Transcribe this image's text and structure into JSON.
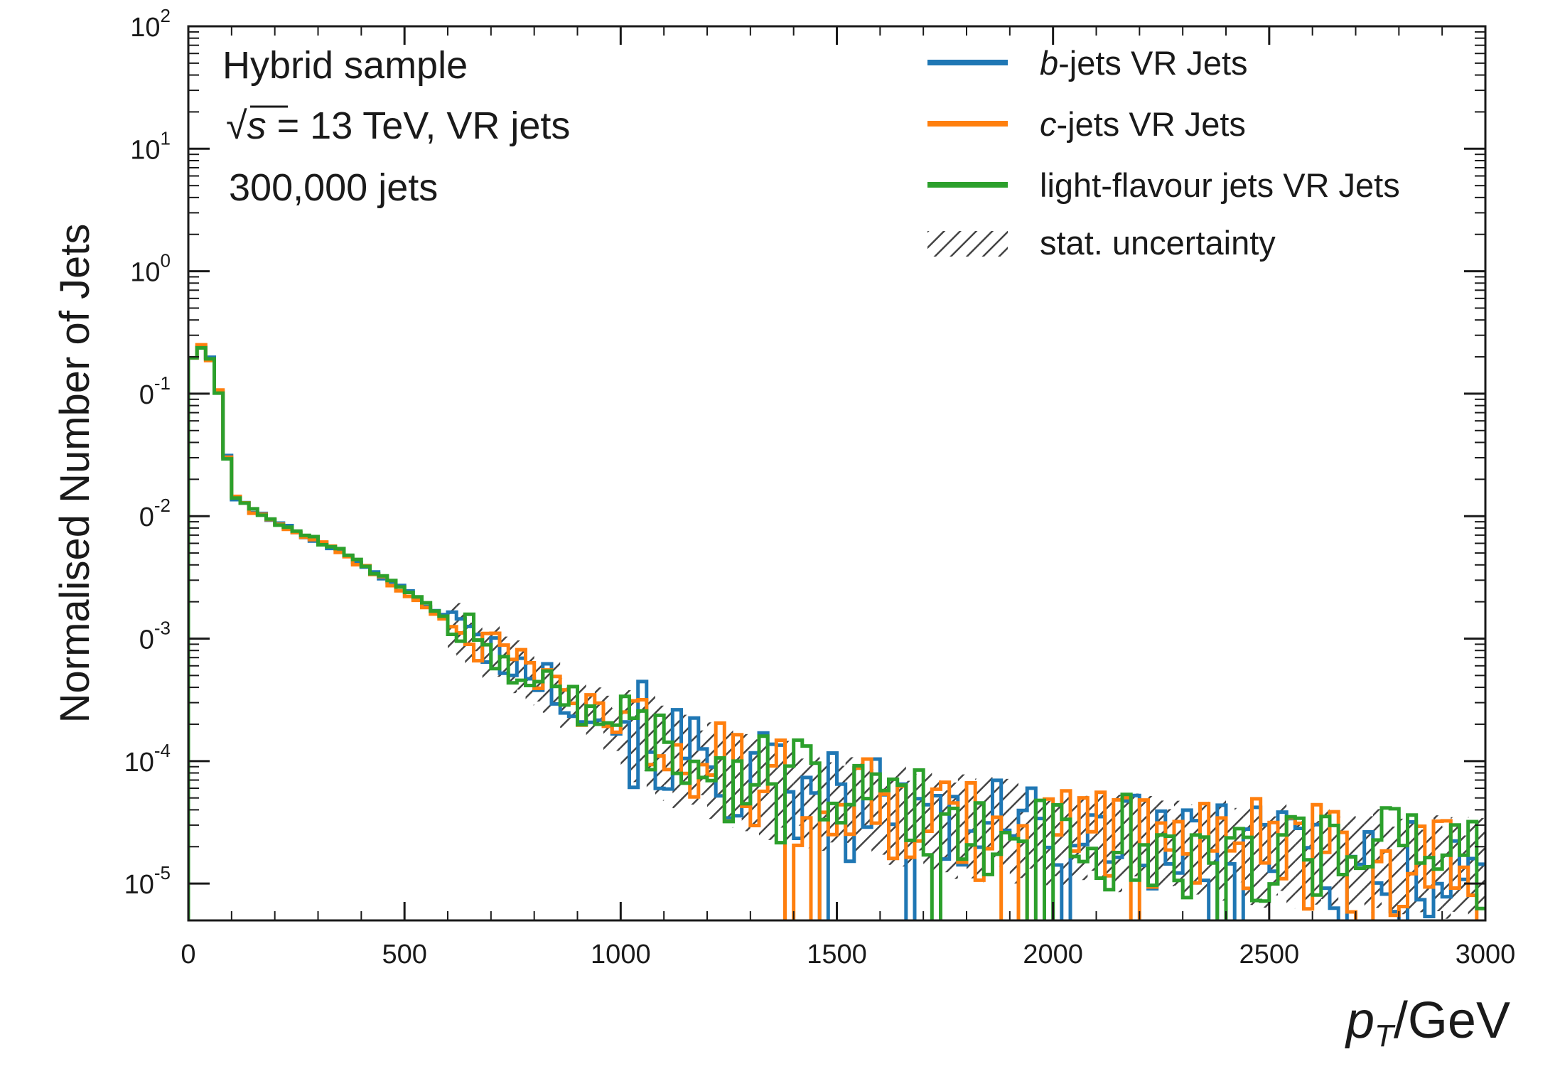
{
  "chart_data": {
    "type": "histogram",
    "xlabel_var": "p",
    "xlabel_sub": "T",
    "xlabel_unit": "/GeV",
    "ylabel": "Normalised Number of Jets",
    "xlim": [
      0,
      3000
    ],
    "ylim": [
      5e-06,
      100
    ],
    "yscale": "log",
    "grid": false,
    "legend_position": "top-right",
    "x_ticks": [
      "0",
      "500",
      "1000",
      "1500",
      "2000",
      "2500",
      "3000"
    ],
    "y_ticks": [
      {
        "base": "10",
        "exp": "-5"
      },
      {
        "base": "10",
        "exp": "-4"
      },
      {
        "base": "0",
        "exp": "-3"
      },
      {
        "base": "0",
        "exp": "-2"
      },
      {
        "base": "0",
        "exp": "-1"
      },
      {
        "base": "10",
        "exp": "0"
      },
      {
        "base": "10",
        "exp": "1"
      },
      {
        "base": "10",
        "exp": "2"
      }
    ],
    "annotations": {
      "line1": "Hybrid sample",
      "line2_sqrt_symbol": "√",
      "line2_s": "s",
      "line2_rest": " = 13 TeV, VR jets",
      "line3": "300,000 jets"
    },
    "legend": [
      {
        "key": "b",
        "italic": "b",
        "text": "-jets VR Jets",
        "color": "#1f77b4"
      },
      {
        "key": "c",
        "italic": "c",
        "text": "-jets VR Jets",
        "color": "#ff7f0e"
      },
      {
        "key": "l",
        "italic": "",
        "text": "light-flavour jets VR Jets",
        "color": "#2ca02c"
      },
      {
        "key": "unc",
        "italic": "",
        "text": "stat. uncertainty",
        "color": "#555555"
      }
    ],
    "series": [
      {
        "name": "b-jets VR Jets",
        "color": "#1f77b4",
        "points": [
          [
            0,
            0.07
          ],
          [
            10,
            0.2
          ],
          [
            25,
            0.26
          ],
          [
            50,
            0.19
          ],
          [
            75,
            0.09
          ],
          [
            100,
            0.015
          ],
          [
            150,
            0.011
          ],
          [
            200,
            0.009
          ],
          [
            250,
            0.0075
          ],
          [
            300,
            0.0063
          ],
          [
            350,
            0.0052
          ],
          [
            400,
            0.0041
          ],
          [
            450,
            0.0032
          ],
          [
            500,
            0.0025
          ],
          [
            550,
            0.0019
          ],
          [
            600,
            0.0015
          ],
          [
            650,
            0.0011
          ],
          [
            700,
            0.00082
          ],
          [
            750,
            0.00064
          ],
          [
            800,
            0.0005
          ],
          [
            850,
            0.0004
          ],
          [
            900,
            0.00031
          ],
          [
            950,
            0.00024
          ],
          [
            1000,
            0.00019
          ],
          [
            1050,
            0.00016
          ],
          [
            1100,
            0.00013
          ],
          [
            1150,
            0.000105
          ],
          [
            1200,
            9e-05
          ],
          [
            1250,
            7.8e-05
          ],
          [
            1300,
            7e-05
          ],
          [
            1350,
            6.2e-05
          ],
          [
            1400,
            5.5e-05
          ],
          [
            1450,
            5e-05
          ],
          [
            1500,
            4.5e-05
          ],
          [
            1550,
            4.1e-05
          ],
          [
            1600,
            3.8e-05
          ],
          [
            1700,
            3.4e-05
          ],
          [
            1800,
            3e-05
          ],
          [
            1900,
            2.7e-05
          ],
          [
            2000,
            2.5e-05
          ],
          [
            2100,
            2.3e-05
          ],
          [
            2200,
            2.1e-05
          ],
          [
            2300,
            2e-05
          ],
          [
            2400,
            1.9e-05
          ],
          [
            2500,
            1.8e-05
          ],
          [
            2600,
            1.7e-05
          ],
          [
            2700,
            1.6e-05
          ],
          [
            2800,
            1.5e-05
          ],
          [
            2900,
            1.4e-05
          ],
          [
            3000,
            1.4e-05
          ]
        ]
      },
      {
        "name": "c-jets VR Jets",
        "color": "#ff7f0e",
        "points": [
          [
            0,
            0.07
          ],
          [
            10,
            0.2
          ],
          [
            25,
            0.26
          ],
          [
            50,
            0.19
          ],
          [
            75,
            0.09
          ],
          [
            100,
            0.015
          ],
          [
            150,
            0.011
          ],
          [
            200,
            0.009
          ],
          [
            250,
            0.0074
          ],
          [
            300,
            0.0062
          ],
          [
            350,
            0.0051
          ],
          [
            400,
            0.004
          ],
          [
            450,
            0.0031
          ],
          [
            500,
            0.0024
          ],
          [
            550,
            0.0018
          ],
          [
            600,
            0.0014
          ],
          [
            650,
            0.00105
          ],
          [
            700,
            0.0008
          ],
          [
            750,
            0.00062
          ],
          [
            800,
            0.00048
          ],
          [
            850,
            0.00038
          ],
          [
            900,
            0.0003
          ],
          [
            950,
            0.00023
          ],
          [
            1000,
            0.00018
          ],
          [
            1050,
            0.00015
          ],
          [
            1100,
            0.00012
          ],
          [
            1150,
            0.0001
          ],
          [
            1200,
            8.8e-05
          ],
          [
            1250,
            7.6e-05
          ],
          [
            1300,
            6.8e-05
          ],
          [
            1350,
            6e-05
          ],
          [
            1400,
            5.4e-05
          ],
          [
            1450,
            4.9e-05
          ],
          [
            1500,
            4.4e-05
          ],
          [
            1550,
            4e-05
          ],
          [
            1600,
            3.7e-05
          ],
          [
            1700,
            3.3e-05
          ],
          [
            1800,
            3e-05
          ],
          [
            1900,
            2.7e-05
          ],
          [
            2000,
            2.5e-05
          ],
          [
            2100,
            2.3e-05
          ],
          [
            2200,
            2.1e-05
          ],
          [
            2300,
            2e-05
          ],
          [
            2400,
            1.9e-05
          ],
          [
            2500,
            1.8e-05
          ],
          [
            2600,
            1.7e-05
          ],
          [
            2700,
            1.6e-05
          ],
          [
            2800,
            1.5e-05
          ],
          [
            2900,
            1.4e-05
          ],
          [
            3000,
            1.4e-05
          ]
        ]
      },
      {
        "name": "light-flavour jets VR Jets",
        "color": "#2ca02c",
        "points": [
          [
            0,
            0.07
          ],
          [
            10,
            0.2
          ],
          [
            25,
            0.26
          ],
          [
            50,
            0.19
          ],
          [
            75,
            0.09
          ],
          [
            100,
            0.015
          ],
          [
            150,
            0.011
          ],
          [
            200,
            0.009
          ],
          [
            250,
            0.0075
          ],
          [
            300,
            0.0063
          ],
          [
            350,
            0.0052
          ],
          [
            400,
            0.0041
          ],
          [
            450,
            0.0032
          ],
          [
            500,
            0.0025
          ],
          [
            550,
            0.0019
          ],
          [
            600,
            0.0015
          ],
          [
            650,
            0.0011
          ],
          [
            700,
            0.00082
          ],
          [
            750,
            0.00064
          ],
          [
            800,
            0.0005
          ],
          [
            850,
            0.0004
          ],
          [
            900,
            0.00031
          ],
          [
            950,
            0.00024
          ],
          [
            1000,
            0.00019
          ],
          [
            1050,
            0.00016
          ],
          [
            1100,
            0.00013
          ],
          [
            1150,
            0.000105
          ],
          [
            1200,
            9e-05
          ],
          [
            1250,
            7.8e-05
          ],
          [
            1300,
            7e-05
          ],
          [
            1350,
            6.2e-05
          ],
          [
            1400,
            5.5e-05
          ],
          [
            1450,
            5e-05
          ],
          [
            1500,
            4.5e-05
          ],
          [
            1550,
            4.1e-05
          ],
          [
            1600,
            3.8e-05
          ],
          [
            1700,
            3.4e-05
          ],
          [
            1800,
            3e-05
          ],
          [
            1900,
            2.7e-05
          ],
          [
            2000,
            2.5e-05
          ],
          [
            2100,
            2.3e-05
          ],
          [
            2200,
            2.1e-05
          ],
          [
            2300,
            2e-05
          ],
          [
            2400,
            1.9e-05
          ],
          [
            2500,
            1.8e-05
          ],
          [
            2600,
            1.7e-05
          ],
          [
            2700,
            1.6e-05
          ],
          [
            2800,
            1.5e-05
          ],
          [
            2900,
            1.4e-05
          ],
          [
            3000,
            1.4e-05
          ]
        ]
      }
    ]
  }
}
